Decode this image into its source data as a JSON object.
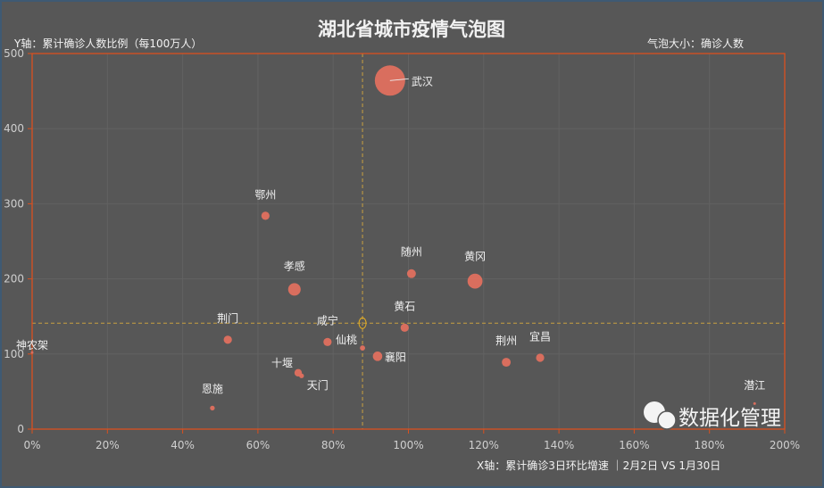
{
  "chart_data": {
    "type": "scatter",
    "title": "湖北省城市疫情气泡图",
    "ylabel": "Y轴：累计确诊人数比例（每100万人）",
    "size_label": "气泡大小：确诊人数",
    "xlabel": "X轴：累计确诊3日环比增速 ｜2月2日 VS 1月30日",
    "xlim": [
      0,
      200
    ],
    "ylim": [
      0,
      500
    ],
    "x_ticks": [
      "0%",
      "20%",
      "40%",
      "60%",
      "80%",
      "100%",
      "120%",
      "140%",
      "160%",
      "180%",
      "200%"
    ],
    "y_ticks": [
      "0",
      "100",
      "200",
      "300",
      "400",
      "500"
    ],
    "grid": true,
    "reference_lines": {
      "x": 87.8,
      "y": 141
    },
    "points": [
      {
        "name": "武汉",
        "x": 95.1,
        "y": 464,
        "size": 4109
      },
      {
        "name": "鄂州",
        "x": 62.0,
        "y": 284,
        "size": 300
      },
      {
        "name": "孝感",
        "x": 69.7,
        "y": 186,
        "size": 700
      },
      {
        "name": "随州",
        "x": 100.8,
        "y": 207,
        "size": 350
      },
      {
        "name": "黄冈",
        "x": 117.7,
        "y": 197,
        "size": 1000
      },
      {
        "name": "黄石",
        "x": 99.0,
        "y": 135,
        "size": 300
      },
      {
        "name": "荆门",
        "x": 52.0,
        "y": 119,
        "size": 300
      },
      {
        "name": "咸宁",
        "x": 78.5,
        "y": 116,
        "size": 300
      },
      {
        "name": "仙桃",
        "x": 87.8,
        "y": 108,
        "size": 120
      },
      {
        "name": "襄阳",
        "x": 91.8,
        "y": 97,
        "size": 400
      },
      {
        "name": "荆州",
        "x": 126.0,
        "y": 89,
        "size": 350
      },
      {
        "name": "宜昌",
        "x": 135.0,
        "y": 95,
        "size": 300
      },
      {
        "name": "十堰",
        "x": 70.7,
        "y": 75,
        "size": 250
      },
      {
        "name": "天门",
        "x": 71.6,
        "y": 71,
        "size": 100
      },
      {
        "name": "恩施",
        "x": 47.9,
        "y": 28,
        "size": 100
      },
      {
        "name": "潜江",
        "x": 192.0,
        "y": 34,
        "size": 20
      },
      {
        "name": "神农架",
        "x": 0,
        "y": 102,
        "size": 10
      }
    ]
  },
  "watermark": "数据化管理",
  "colors": {
    "background": "#575757",
    "bubble": "#e0705f",
    "axis": "#d9501e",
    "reference": "#c9a040"
  }
}
